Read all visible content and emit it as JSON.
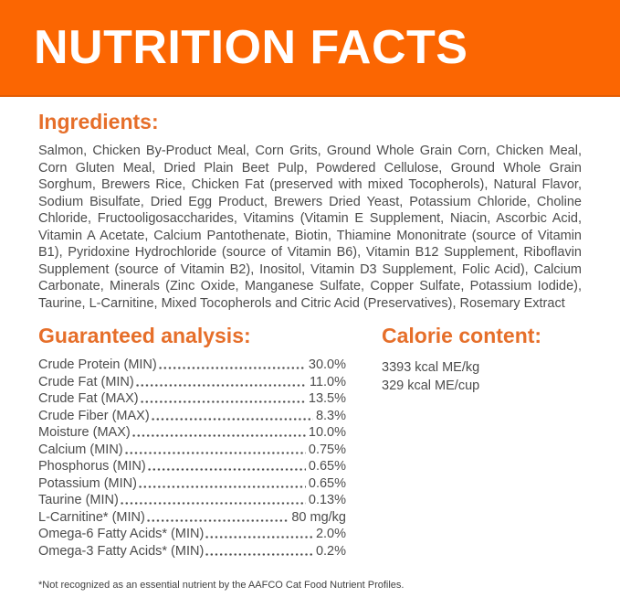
{
  "colors": {
    "banner_bg": "#FB6602",
    "banner_title": "#FFFFFF",
    "heading_orange": "#E66F2A",
    "body_text": "#4C4C4C"
  },
  "banner": {
    "title": "NUTRITION FACTS"
  },
  "ingredients": {
    "heading": "Ingredients:",
    "text": "Salmon, Chicken By-Product Meal, Corn Grits, Ground Whole Grain Corn, Chicken Meal, Corn Gluten Meal, Dried Plain Beet Pulp, Powdered Cellulose, Ground Whole Grain Sorghum, Brewers Rice, Chicken Fat (preserved with mixed Tocopherols), Natural Flavor, Sodium Bisulfate, Dried Egg Product, Brewers Dried Yeast, Potassium Chloride, Choline Chloride, Fructooligosaccharides, Vitamins (Vitamin E Supplement, Niacin, Ascorbic Acid, Vitamin A Acetate, Calcium Pantothenate, Biotin, Thiamine Mononitrate (source of Vitamin B1), Pyridoxine Hydrochloride (source of Vitamin B6), Vitamin B12 Supplement, Riboflavin Supplement (source of Vitamin B2), Inositol, Vitamin D3 Supplement, Folic Acid), Calcium Carbonate, Minerals (Zinc Oxide, Manganese Sulfate, Copper Sulfate, Potassium Iodide), Taurine, L-Carnitine, Mixed Tocopherols and Citric Acid (Preservatives), Rosemary Extract"
  },
  "guaranteed_analysis": {
    "heading": "Guaranteed analysis:",
    "rows": [
      {
        "label": "Crude Protein (MIN)",
        "value": "30.0%"
      },
      {
        "label": "Crude Fat (MIN)",
        "value": "11.0%"
      },
      {
        "label": "Crude Fat (MAX)",
        "value": "13.5%"
      },
      {
        "label": "Crude Fiber (MAX)",
        "value": "8.3%"
      },
      {
        "label": "Moisture (MAX)",
        "value": "10.0%"
      },
      {
        "label": "Calcium (MIN)",
        "value": "0.75%"
      },
      {
        "label": "Phosphorus (MIN)",
        "value": "0.65%"
      },
      {
        "label": "Potassium (MIN)",
        "value": "0.65%"
      },
      {
        "label": "Taurine (MIN)",
        "value": "0.13%"
      },
      {
        "label": "L-Carnitine* (MIN)",
        "value": "80 mg/kg"
      },
      {
        "label": "Omega-6 Fatty Acids* (MIN)",
        "value": "2.0%"
      },
      {
        "label": "Omega-3 Fatty Acids* (MIN)",
        "value": "0.2%"
      }
    ]
  },
  "calorie_content": {
    "heading": "Calorie content:",
    "lines": [
      "3393 kcal ME/kg",
      "329 kcal ME/cup"
    ]
  },
  "footnote": "*Not recognized as an essential nutrient by the AAFCO Cat Food Nutrient Profiles."
}
